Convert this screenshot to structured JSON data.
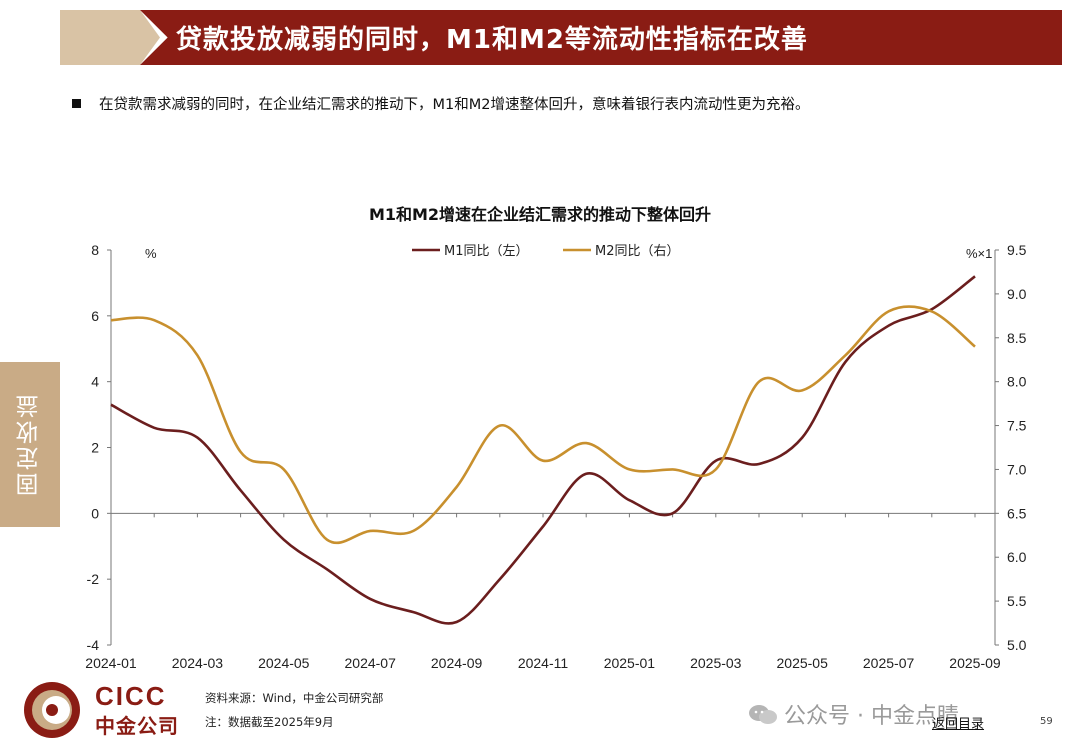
{
  "header": {
    "title": "贷款投放减弱的同时，M1和M2等流动性指标在改善"
  },
  "bullet": {
    "text": "在贷款需求减弱的同时，在企业结汇需求的推动下，M1和M2增速整体回升，意味着银行表内流动性更为充裕。"
  },
  "side_tab": {
    "label": "固定收益"
  },
  "chart_data": {
    "type": "line",
    "title": "M1和M2增速在企业结汇需求的推动下整体回升",
    "left_axis_unit": "%",
    "right_axis_unit": "%×1",
    "x_tick_labels": [
      "2024-01",
      "2024-03",
      "2024-05",
      "2024-07",
      "2024-09",
      "2024-11",
      "2025-01",
      "2025-03",
      "2025-05",
      "2025-07",
      "2025-09"
    ],
    "x": [
      "2024-01",
      "2024-02",
      "2024-03",
      "2024-04",
      "2024-05",
      "2024-06",
      "2024-07",
      "2024-08",
      "2024-09",
      "2024-10",
      "2024-11",
      "2024-12",
      "2025-01",
      "2025-02",
      "2025-03",
      "2025-04",
      "2025-05",
      "2025-06",
      "2025-07",
      "2025-08",
      "2025-09"
    ],
    "left_ylim": [
      -4,
      8
    ],
    "left_yticks": [
      "-4",
      "-2",
      "0",
      "2",
      "4",
      "6",
      "8"
    ],
    "right_ylim": [
      5.0,
      9.5
    ],
    "right_yticks": [
      "5.0",
      "5.5",
      "6.0",
      "6.5",
      "7.0",
      "7.5",
      "8.0",
      "8.5",
      "9.0",
      "9.5"
    ],
    "legend_position": "top-center",
    "grid": false,
    "series": [
      {
        "name": "M1同比（左）",
        "axis": "left",
        "color": "#6b1e1e",
        "values": [
          3.3,
          2.6,
          2.3,
          0.7,
          -0.8,
          -1.7,
          -2.6,
          -3.0,
          -3.3,
          -2.0,
          -0.4,
          1.2,
          0.4,
          0.0,
          1.6,
          1.5,
          2.3,
          4.6,
          5.7,
          6.2,
          7.2
        ]
      },
      {
        "name": "M2同比（右）",
        "axis": "right",
        "color": "#c8902e",
        "values": [
          8.7,
          8.7,
          8.3,
          7.2,
          7.0,
          6.2,
          6.3,
          6.3,
          6.8,
          7.5,
          7.1,
          7.3,
          7.0,
          7.0,
          7.0,
          8.0,
          7.9,
          8.3,
          8.8,
          8.8,
          8.4
        ]
      }
    ]
  },
  "logo": {
    "en": "CICC",
    "cn": "中金公司"
  },
  "footer": {
    "source": "资料来源：Wind，中金公司研究部",
    "note": "注：数据截至2025年9月",
    "wechat_text": "公众号 · 中金点睛",
    "back_link": "返回目录",
    "page_number": "59"
  }
}
